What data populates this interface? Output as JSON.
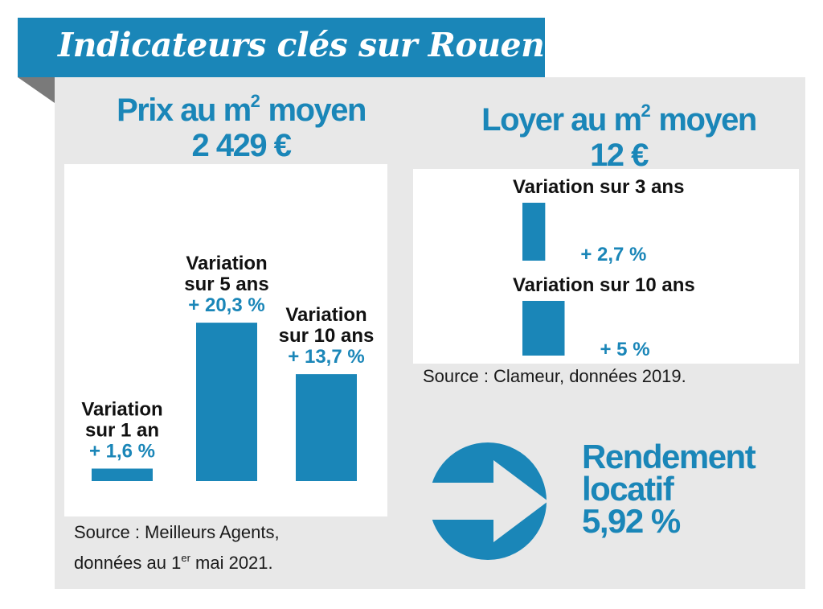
{
  "banner": {
    "title": "Indicateurs clés sur Rouen"
  },
  "prix": {
    "heading_main": "Prix au m",
    "heading_sup": "2",
    "heading_tail": " moyen",
    "value": "2 429 €"
  },
  "loyer": {
    "heading_main": "Loyer au m",
    "heading_sup": "2",
    "heading_tail": " moyen",
    "value": "12 €"
  },
  "chart_data": [
    {
      "type": "bar",
      "categories": [
        "Variation sur 1 an",
        "Variation sur 5 ans",
        "Variation sur 10 ans"
      ],
      "label_lines": [
        [
          "Variation",
          "sur 1 an"
        ],
        [
          "Variation",
          "sur 5 ans"
        ],
        [
          "Variation",
          "sur 10 ans"
        ]
      ],
      "values": [
        1.6,
        20.3,
        13.7
      ],
      "value_labels": [
        "+ 1,6 %",
        "+ 20,3 %",
        "+ 13,7 %"
      ],
      "color": "#1a86b8"
    },
    {
      "type": "bar",
      "categories": [
        "Variation sur 3 ans",
        "Variation sur 10 ans"
      ],
      "values": [
        2.7,
        5
      ],
      "value_labels": [
        "+ 2,7 %",
        "+ 5 %"
      ],
      "color": "#1a86b8"
    }
  ],
  "source_prix": {
    "line1": "Source : Meilleurs Agents,",
    "line2_before": "données au 1",
    "line2_sup": "er",
    "line2_after": " mai 2021."
  },
  "source_loyer": "Source : Clameur, données 2019.",
  "rendement": {
    "line1": "Rendement",
    "line2": "locatif",
    "line3": "5,92 %"
  },
  "arrow_icon": "right-arrow-circle-icon"
}
